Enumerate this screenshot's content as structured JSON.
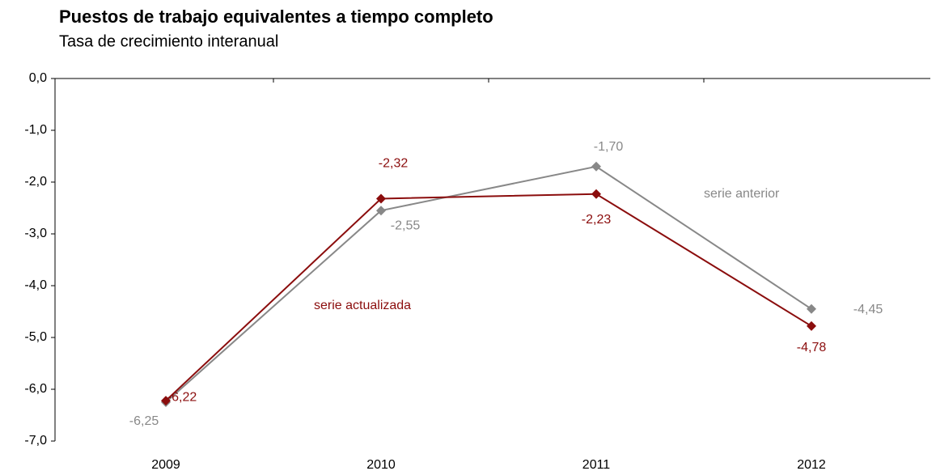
{
  "chart_data": {
    "type": "line",
    "title": "Puestos de trabajo equivalentes a tiempo completo",
    "subtitle": "Tasa de crecimiento interanual",
    "categories": [
      "2009",
      "2010",
      "2011",
      "2012"
    ],
    "series": [
      {
        "name": "serie anterior",
        "color": "#888888",
        "values": [
          -6.25,
          -2.55,
          -1.7,
          -4.45
        ],
        "value_labels": [
          "-6,25",
          "-2,55",
          "-1,70",
          "-4,45"
        ]
      },
      {
        "name": "serie actualizada",
        "color": "#8b0d0d",
        "values": [
          -6.22,
          -2.32,
          -2.23,
          -4.78
        ],
        "value_labels": [
          "-6,22",
          "-2,32",
          "-2,23",
          "-4,78"
        ]
      }
    ],
    "ylim": [
      -7,
      0
    ],
    "yticks": [
      {
        "value": 0,
        "label": "0,0"
      },
      {
        "value": -1,
        "label": "-1,0"
      },
      {
        "value": -2,
        "label": "-2,0"
      },
      {
        "value": -3,
        "label": "-3,0"
      },
      {
        "value": -4,
        "label": "-4,0"
      },
      {
        "value": -5,
        "label": "-5,0"
      },
      {
        "value": -6,
        "label": "-6,0"
      },
      {
        "value": -7,
        "label": "-7,0"
      }
    ]
  }
}
